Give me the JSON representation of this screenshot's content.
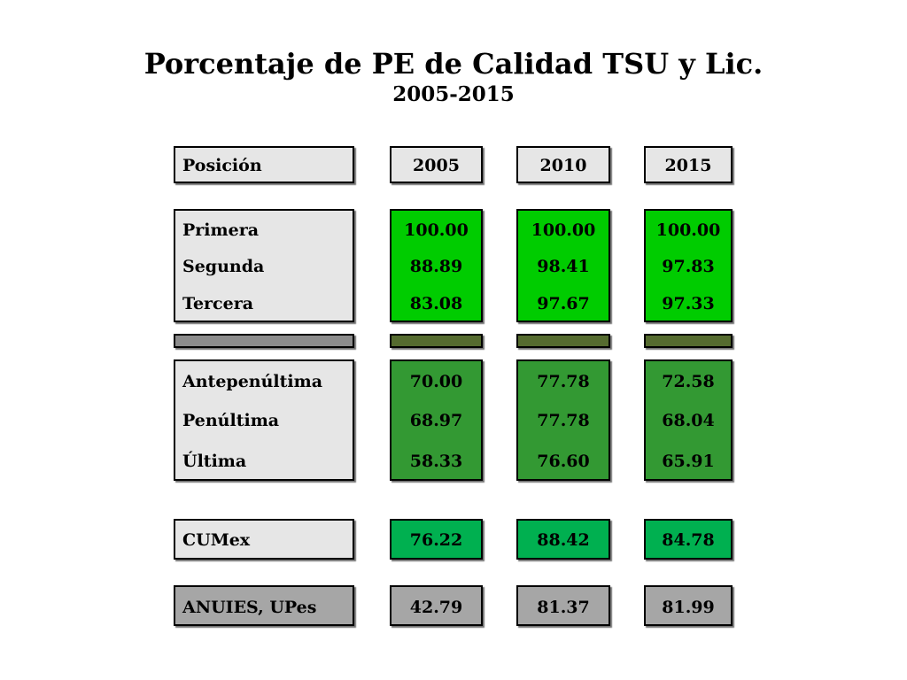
{
  "title": "Porcentaje de PE de Calidad TSU y Lic.",
  "subtitle": "2005-2015",
  "colors": {
    "label_bg": "#e6e6e6",
    "top_bg": "#00cc00",
    "separator_label": "#8c8c8c",
    "separator_value": "#556b2f",
    "bottom_bg": "#339933",
    "cumex_bg": "#00b050",
    "anuies_bg": "#a6a6a6"
  },
  "chart_data": {
    "type": "table",
    "columns": [
      "Posición",
      "2005",
      "2010",
      "2015"
    ],
    "groups": [
      {
        "key": "top",
        "rows": [
          {
            "label": "Primera",
            "values": [
              "100.00",
              "100.00",
              "100.00"
            ]
          },
          {
            "label": "Segunda",
            "values": [
              "88.89",
              "98.41",
              "97.83"
            ]
          },
          {
            "label": "Tercera",
            "values": [
              "83.08",
              "97.67",
              "97.33"
            ]
          }
        ]
      },
      {
        "key": "bottom",
        "rows": [
          {
            "label": "Antepenúltima",
            "values": [
              "70.00",
              "77.78",
              "72.58"
            ]
          },
          {
            "label": "Penúltima",
            "values": [
              "68.97",
              "77.78",
              "68.04"
            ]
          },
          {
            "label": "Última",
            "values": [
              "58.33",
              "76.60",
              "65.91"
            ]
          }
        ]
      },
      {
        "key": "cumex",
        "rows": [
          {
            "label": "CUMex",
            "values": [
              "76.22",
              "88.42",
              "84.78"
            ]
          }
        ]
      },
      {
        "key": "anuies",
        "rows": [
          {
            "label": "ANUIES, UPes",
            "values": [
              "42.79",
              "81.37",
              "81.99"
            ]
          }
        ]
      }
    ]
  }
}
